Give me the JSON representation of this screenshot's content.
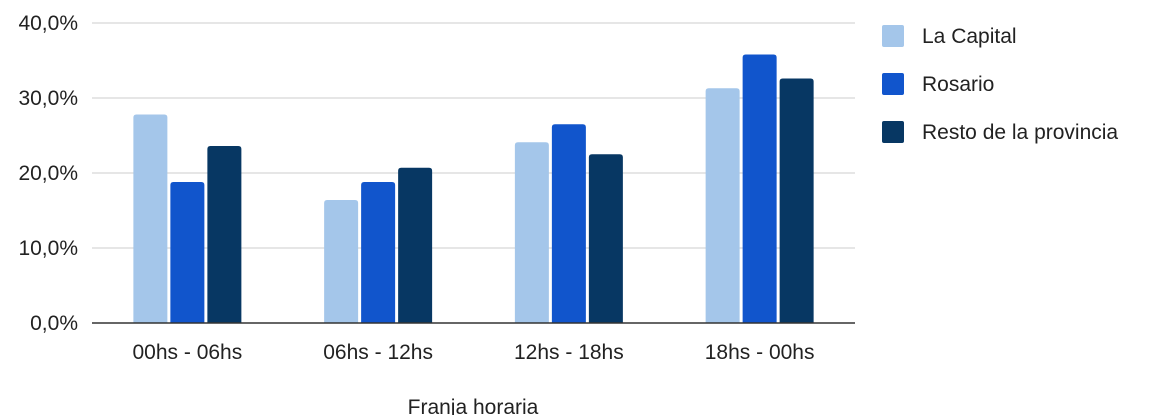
{
  "chart_data": {
    "type": "bar",
    "title": "",
    "xlabel": "Franja horaria",
    "ylabel": "",
    "categories": [
      "00hs - 06hs",
      "06hs - 12hs",
      "12hs - 18hs",
      "18hs - 00hs"
    ],
    "series": [
      {
        "name": "La Capital",
        "color": "#a4c6ea",
        "values": [
          27.8,
          16.4,
          24.1,
          31.3
        ]
      },
      {
        "name": "Rosario",
        "color": "#1155cc",
        "values": [
          18.8,
          18.8,
          26.5,
          35.8
        ]
      },
      {
        "name": "Resto de la provincia",
        "color": "#073763",
        "values": [
          23.6,
          20.7,
          22.5,
          32.6
        ]
      }
    ],
    "ylim": [
      0,
      40
    ],
    "yticks": [
      "0,0%",
      "10,0%",
      "20,0%",
      "30,0%",
      "40,0%"
    ],
    "grid": true,
    "legend_position": "right"
  }
}
